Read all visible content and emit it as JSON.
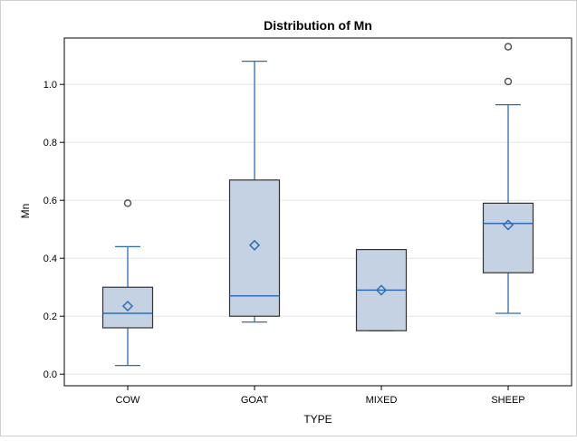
{
  "chart_data": {
    "type": "box",
    "title": "Distribution of Mn",
    "xlabel": "TYPE",
    "ylabel": "Mn",
    "categories": [
      "COW",
      "GOAT",
      "MIXED",
      "SHEEP"
    ],
    "ylim": [
      -0.04,
      1.16
    ],
    "yticks": [
      "0.0",
      "0.2",
      "0.4",
      "0.6",
      "0.8",
      "1.0"
    ],
    "grid": true,
    "boxes": [
      {
        "category": "COW",
        "min": 0.03,
        "q1": 0.16,
        "median": 0.21,
        "q3": 0.3,
        "max": 0.44,
        "mean": 0.235,
        "outliers": [
          0.59
        ]
      },
      {
        "category": "GOAT",
        "min": 0.18,
        "q1": 0.2,
        "median": 0.27,
        "q3": 0.67,
        "max": 1.08,
        "mean": 0.445,
        "outliers": []
      },
      {
        "category": "MIXED",
        "min": 0.15,
        "q1": 0.15,
        "median": 0.29,
        "q3": 0.43,
        "max": 0.43,
        "mean": 0.29,
        "outliers": []
      },
      {
        "category": "SHEEP",
        "min": 0.21,
        "q1": 0.35,
        "median": 0.52,
        "q3": 0.59,
        "max": 0.93,
        "mean": 0.515,
        "outliers": [
          1.01,
          1.13
        ]
      }
    ],
    "colors": {
      "box_fill": "#c5d2e3",
      "box_stroke": "#333333",
      "whisker": "#2e6db4",
      "median": "#2e6db4",
      "mean_marker": "#2e6db4",
      "outlier": "#555555",
      "grid": "#e6e6e6"
    }
  }
}
